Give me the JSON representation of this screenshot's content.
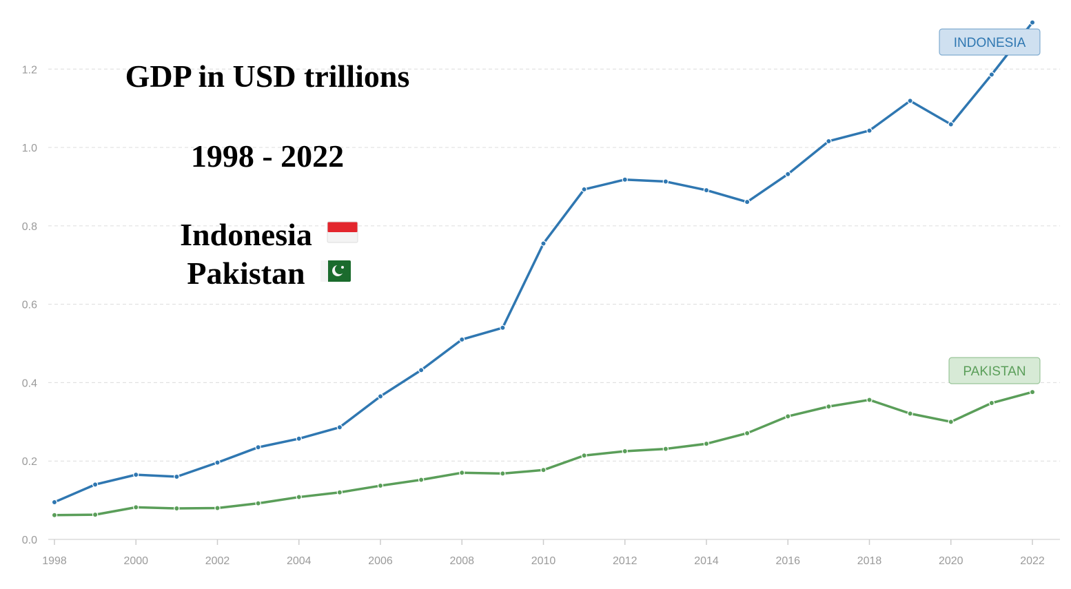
{
  "chart_data": {
    "type": "line",
    "title_lines": [
      "GDP in USD trillions",
      "1998 - 2022",
      "Indonesia",
      "Pakistan"
    ],
    "x": [
      1998,
      1999,
      2000,
      2001,
      2002,
      2003,
      2004,
      2005,
      2006,
      2007,
      2008,
      2009,
      2010,
      2011,
      2012,
      2013,
      2014,
      2015,
      2016,
      2017,
      2018,
      2019,
      2020,
      2021,
      2022
    ],
    "x_ticks": [
      "1998",
      "2000",
      "2002",
      "2004",
      "2006",
      "2008",
      "2010",
      "2012",
      "2014",
      "2016",
      "2018",
      "2020",
      "2022"
    ],
    "y_ticks": [
      "0.0",
      "0.2",
      "0.4",
      "0.6",
      "0.8",
      "1.0",
      "1.2"
    ],
    "ylim": [
      0,
      1.32
    ],
    "xlim": [
      1998,
      2022
    ],
    "grid": true,
    "series": [
      {
        "name": "INDONESIA",
        "color": "#2f77b1",
        "label_bg": "#cfe0f0",
        "values": [
          0.095,
          0.14,
          0.165,
          0.16,
          0.196,
          0.235,
          0.257,
          0.286,
          0.365,
          0.432,
          0.51,
          0.54,
          0.755,
          0.893,
          0.918,
          0.913,
          0.891,
          0.861,
          0.932,
          1.016,
          1.043,
          1.119,
          1.059,
          1.186,
          1.319
        ]
      },
      {
        "name": "PAKISTAN",
        "color": "#5a9e59",
        "label_bg": "#d7ead6",
        "values": [
          0.062,
          0.063,
          0.082,
          0.079,
          0.08,
          0.092,
          0.108,
          0.12,
          0.137,
          0.152,
          0.17,
          0.168,
          0.177,
          0.214,
          0.225,
          0.231,
          0.244,
          0.271,
          0.314,
          0.339,
          0.356,
          0.321,
          0.3,
          0.348,
          0.376
        ]
      }
    ]
  }
}
